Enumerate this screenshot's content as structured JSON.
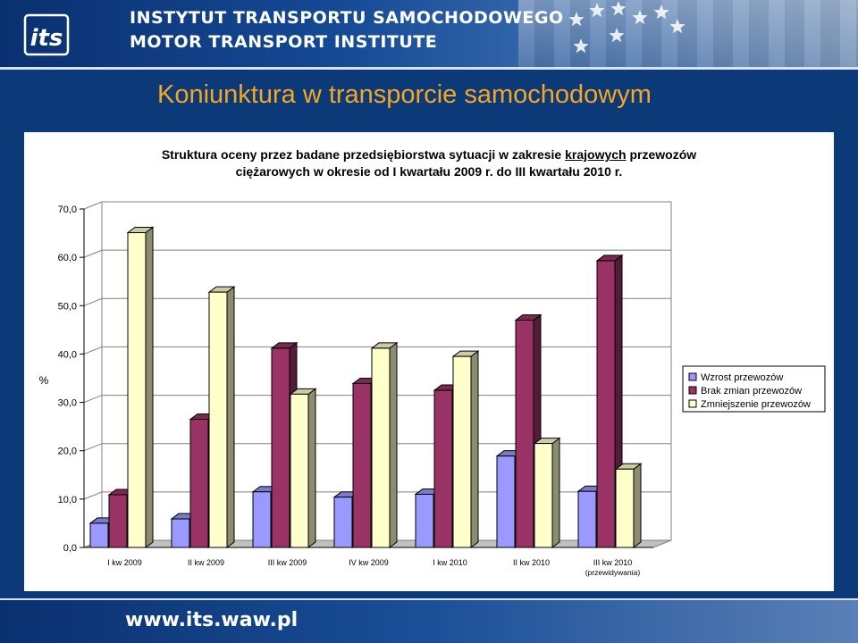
{
  "header": {
    "institute_pl": "INSTYTUT TRANSPORTU SAMOCHODOWEGO",
    "institute_en": "MOTOR TRANSPORT INSTITUTE",
    "logo_text": "its"
  },
  "page_title": "Koniunktura w transporcie samochodowym",
  "chart_title": {
    "part1": "Struktura oceny przez badane przedsiębiorstwa sytuacji w zakresie ",
    "underlined": "krajowych",
    "part2": " przewozów",
    "line2": "ciężarowych w okresie od I kwartału 2009 r. do III kwartału 2010 r."
  },
  "footer": {
    "url": "www.its.waw.pl"
  },
  "colors": {
    "wzrost": "#9999ff",
    "brak": "#993366",
    "zmniejszenie": "#ffffcc",
    "title_orange": "#f5a623",
    "background_blue": "#0c3a78"
  },
  "chart_data": {
    "type": "bar",
    "ylabel": "%",
    "ylim": [
      0,
      70
    ],
    "yticks": [
      "0,0",
      "10,0",
      "20,0",
      "30,0",
      "40,0",
      "50,0",
      "60,0",
      "70,0"
    ],
    "grid": true,
    "legend_position": "right",
    "categories": [
      [
        "I kw 2009"
      ],
      [
        "II kw 2009"
      ],
      [
        "III kw 2009"
      ],
      [
        "IV kw 2009"
      ],
      [
        "I kw 2010"
      ],
      [
        "II kw 2010"
      ],
      [
        "III kw 2010",
        "(przewidywania)"
      ]
    ],
    "series": [
      {
        "name": "Wzrost przewozów",
        "values": [
          5.0,
          5.9,
          11.5,
          10.4,
          11.0,
          18.9,
          11.6
        ]
      },
      {
        "name": "Brak zmian przewozów",
        "values": [
          10.9,
          26.5,
          41.2,
          33.9,
          32.5,
          47.0,
          59.3
        ]
      },
      {
        "name": "Zmniejszenie przewozów",
        "values": [
          65.1,
          52.8,
          31.7,
          41.2,
          39.5,
          21.5,
          16.2
        ]
      }
    ]
  }
}
